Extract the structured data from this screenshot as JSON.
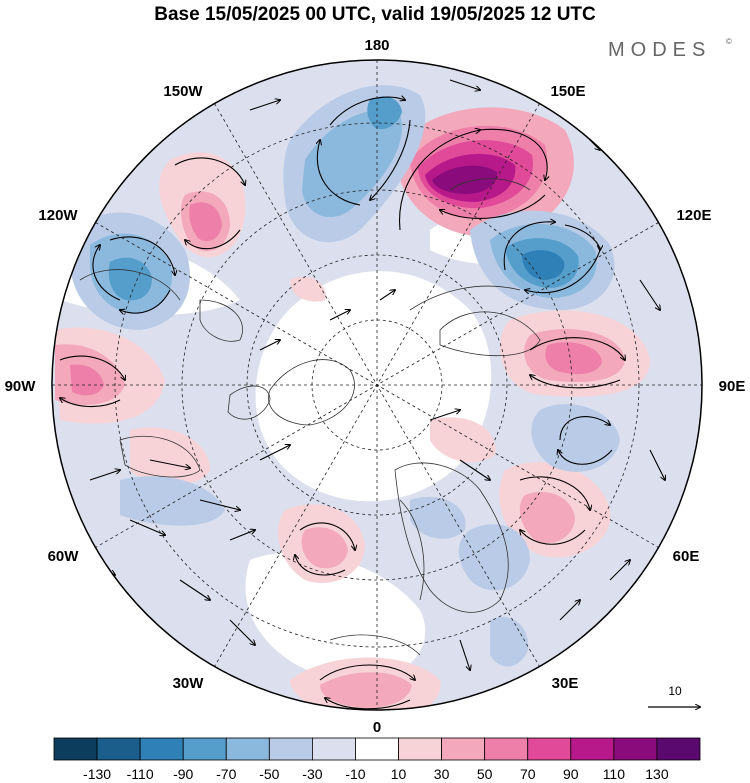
{
  "title": "Base 15/05/2025 00 UTC, valid 19/05/2025 12 UTC",
  "brand": "MODES",
  "brand_mark": "©",
  "longitude_labels": {
    "n180": "180",
    "w150": "150W",
    "e150": "150E",
    "w120": "120W",
    "e120": "120E",
    "w90": "90W",
    "e90": "90E",
    "w60": "60W",
    "e60": "60E",
    "w30": "30W",
    "e30": "30E",
    "s0": "0"
  },
  "vector_reference": {
    "label": "10"
  },
  "colorbar": {
    "tick_labels": [
      "-130",
      "-110",
      "-90",
      "-70",
      "-50",
      "-30",
      "-10",
      "10",
      "30",
      "50",
      "70",
      "90",
      "110",
      "130"
    ],
    "colors": [
      "#0d3d5c",
      "#1b5e8c",
      "#2f80b6",
      "#559dcb",
      "#8bb8dd",
      "#b9cbe6",
      "#dcdfee",
      "#ffffff",
      "#f7d3d8",
      "#f3a9bb",
      "#ee7fa9",
      "#e04a99",
      "#b8198a",
      "#8a0c7c",
      "#5a0a6e"
    ]
  },
  "anomaly_colors": {
    "neg_light": "#dcdfee",
    "neg_mid": "#b9cbe6",
    "neg_strong": "#8bb8dd",
    "neg_deep": "#559dcb",
    "neg_core": "#2f80b6",
    "pos_light": "#f7d3d8",
    "pos_mid": "#f3a9bb",
    "pos_strong": "#ee7fa9",
    "pos_deep": "#e04a99",
    "pos_core": "#b8198a",
    "pos_max": "#8a0c7c"
  },
  "icons": {
    "wind_vector": "arrow-icon",
    "land": "coastline-icon"
  }
}
